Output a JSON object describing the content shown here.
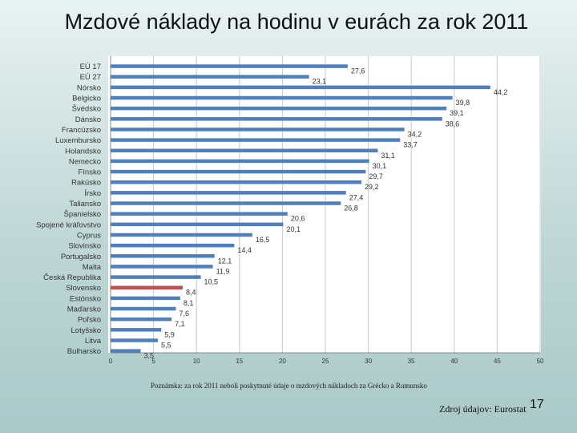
{
  "slide": {
    "title": "Mzdové náklady na hodinu v eurách za rok 2011",
    "note": "Poznámka: za rok 2011 neboli poskytnuté údaje o mzdových nákladoch za Grécko a Rumunsko",
    "source": "Zdroj údajov: Eurostat",
    "page_number": "17"
  },
  "chart_data": {
    "type": "bar",
    "orientation": "horizontal",
    "categories": [
      "EÚ 17",
      "EÚ 27",
      "Nórsko",
      "Belgicko",
      "Švédsko",
      "Dánsko",
      "Francúzsko",
      "Luxembursko",
      "Holandsko",
      "Nemecko",
      "Fínsko",
      "Rakúsko",
      "Írsko",
      "Taliansko",
      "Španielsko",
      "Spojené kráľovstvo",
      "Cyprus",
      "Slovinsko",
      "Portugalsko",
      "Malta",
      "Česká Republika",
      "Slovensko",
      "Estónsko",
      "Maďarsko",
      "Poľsko",
      "Lotyšsko",
      "Litva",
      "Bulharsko"
    ],
    "values": [
      27.6,
      23.1,
      44.2,
      39.8,
      39.1,
      38.6,
      34.2,
      33.7,
      31.1,
      30.1,
      29.7,
      29.2,
      27.4,
      26.8,
      20.6,
      20.1,
      16.5,
      14.4,
      12.1,
      11.9,
      10.5,
      8.4,
      8.1,
      7.6,
      7.1,
      5.9,
      5.5,
      3.5
    ],
    "labels": [
      "27,6",
      "23,1",
      "44,2",
      "39,8",
      "39,1",
      "38,6",
      "34,2",
      "33,7",
      "31,1",
      "30,1",
      "29,7",
      "29,2",
      "27,4",
      "26,8",
      "20,6",
      "20,1",
      "16,5",
      "14,4",
      "12,1",
      "11,9",
      "10,5",
      "8,4",
      "8,1",
      "7,6",
      "7,1",
      "5,9",
      "5,5",
      "3,5"
    ],
    "highlight_category": "Slovensko",
    "xlim": [
      0,
      50
    ],
    "xticks": [
      0,
      5,
      10,
      15,
      20,
      25,
      30,
      35,
      40,
      45,
      50
    ],
    "grid": true,
    "colors": {
      "bar": "#4f7fbd",
      "highlight": "#c0504d",
      "grid": "#c8c8c8",
      "axis": "#888888"
    }
  }
}
